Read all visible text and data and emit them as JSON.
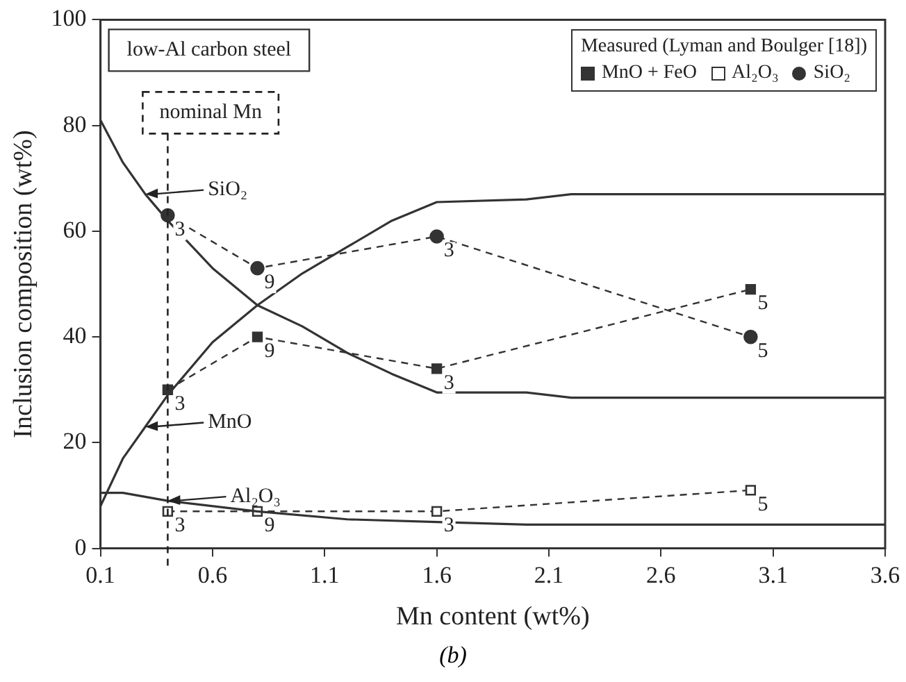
{
  "chart_data": {
    "type": "line",
    "xlabel": "Mn content (wt%)",
    "ylabel": "Inclusion composition (wt%)",
    "legend_title": "Measured (Lyman and Boulger [18])",
    "xlim": [
      0.1,
      3.6
    ],
    "xticks": [
      0.1,
      0.6,
      1.1,
      1.6,
      2.1,
      2.6,
      3.1,
      3.6
    ],
    "ylim": [
      0,
      100
    ],
    "yticks": [
      0,
      20,
      40,
      60,
      80,
      100
    ],
    "grid": false,
    "legend": "top right",
    "line_style": "solid",
    "marker": "none",
    "series": [
      {
        "color": "#333333",
        "x": [
          0.1,
          0.2,
          0.3,
          0.4,
          0.6,
          0.8,
          1.0,
          1.2,
          1.4,
          1.6,
          2.0,
          2.2,
          3.6
        ],
        "values": [
          81,
          73,
          67,
          62,
          53,
          46,
          42,
          37,
          33,
          29.5,
          29.5,
          28.5,
          28.5
        ]
      },
      {
        "color": "#333333",
        "x": [
          0.1,
          0.2,
          0.3,
          0.4,
          0.6,
          0.8,
          1.0,
          1.2,
          1.4,
          1.6,
          2.0,
          2.2,
          3.6
        ],
        "values": [
          8,
          17,
          23,
          29,
          39,
          46,
          52,
          57,
          62,
          65.5,
          66,
          67,
          67
        ]
      },
      {
        "color": "#333333",
        "x": [
          0.1,
          0.2,
          0.4,
          0.8,
          1.2,
          1.6,
          2.0,
          3.6
        ],
        "values": [
          10.5,
          10.5,
          9,
          7,
          5.5,
          5,
          4.5,
          4.5
        ]
      },
      {
        "name": "MnO + FeO",
        "color": "#333333",
        "marker": "square",
        "line_style": "dashed",
        "x": [
          0.4,
          0.8,
          1.6,
          3.0
        ],
        "values": [
          30,
          40,
          34,
          49
        ]
      },
      {
        "name": "Al₂O₃",
        "color": "#333333",
        "marker": "square-open",
        "line_style": "dashed",
        "x": [
          0.4,
          0.8,
          1.6,
          3.0
        ],
        "values": [
          7,
          7,
          7,
          11
        ]
      },
      {
        "name": "SiO₂",
        "color": "#333333",
        "marker": "circle",
        "line_style": "dashed",
        "x": [
          0.4,
          0.8,
          1.6,
          3.0
        ],
        "values": [
          63,
          53,
          59,
          40
        ]
      }
    ],
    "ref_lines": [
      {
        "axis": "x",
        "value": 0.4,
        "label": "nominal Mn",
        "line_style": "dashed"
      }
    ],
    "annotations": [
      "low-Al carbon steel",
      {
        "text": "SiO₂",
        "x": 0.3,
        "y": 67
      },
      {
        "text": "MnO",
        "x": 0.3,
        "y": 23
      },
      {
        "text": "Al₂O₃",
        "x": 0.4,
        "y": 9
      },
      {
        "text": "3",
        "x": 0.4,
        "y": 63
      },
      {
        "text": "9",
        "x": 0.8,
        "y": 53
      },
      {
        "text": "3",
        "x": 1.6,
        "y": 59
      },
      {
        "text": "5",
        "x": 3.0,
        "y": 40
      },
      {
        "text": "3",
        "x": 0.4,
        "y": 30
      },
      {
        "text": "9",
        "x": 0.8,
        "y": 40
      },
      {
        "text": "3",
        "x": 1.6,
        "y": 34
      },
      {
        "text": "5",
        "x": 3.0,
        "y": 49
      },
      {
        "text": "3",
        "x": 0.4,
        "y": 7
      },
      {
        "text": "9",
        "x": 0.8,
        "y": 7
      },
      {
        "text": "3",
        "x": 1.6,
        "y": 7
      },
      {
        "text": "5",
        "x": 3.0,
        "y": 11
      },
      "(b)"
    ]
  }
}
